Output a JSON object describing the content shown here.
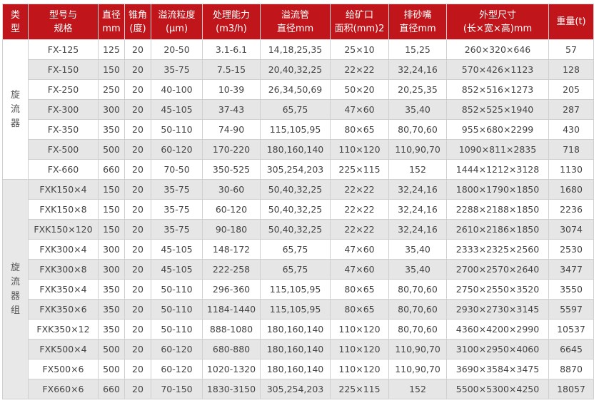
{
  "colors": {
    "header_bg": "#c0161b",
    "header_text": "#ffffff",
    "row_alt": "#e6e6e6",
    "text": "#444444"
  },
  "headers": [
    [
      "类",
      "型"
    ],
    [
      "型号与",
      "规格"
    ],
    [
      "直径",
      "mm"
    ],
    [
      "锥角",
      "(度)"
    ],
    [
      "溢流粒度",
      "(μm)"
    ],
    [
      "处理能力",
      "(m3/h)"
    ],
    [
      "溢流管",
      "直径mm"
    ],
    [
      "给矿口",
      "面积(mm)2"
    ],
    [
      "排砂嘴",
      "直径mm"
    ],
    [
      "外型尺寸",
      "(长×宽×高)mm"
    ],
    [
      "重量(t)"
    ]
  ],
  "groups": [
    {
      "type_label": [
        "旋",
        "流",
        "器"
      ],
      "rows": [
        [
          "FX-125",
          "125",
          "20",
          "20-50",
          "3.1-6.1",
          "14,18,25,35",
          "25×10",
          "15,25",
          "260×320×646",
          "57"
        ],
        [
          "FX-150",
          "150",
          "20",
          "35-75",
          "7.5-15",
          "20,40,32,25",
          "22×22",
          "32,24,16",
          "570×426×1123",
          "128"
        ],
        [
          "FX-250",
          "250",
          "20",
          "40-100",
          "10-39",
          "26,34,50,69",
          "50×20",
          "20,25,35",
          "852×516×1273",
          "205"
        ],
        [
          "FX-300",
          "300",
          "20",
          "45-105",
          "37-43",
          "65,75",
          "47×60",
          "35,40",
          "852×525×1940",
          "287"
        ],
        [
          "FX-350",
          "350",
          "20",
          "50-110",
          "74-90",
          "115,105,95",
          "80×65",
          "80,70,60",
          "955×680×2299",
          "430"
        ],
        [
          "FX-500",
          "500",
          "20",
          "60-120",
          "170-220",
          "180,160,140",
          "110×120",
          "110,90,70",
          "1090×811×2835",
          "718"
        ],
        [
          "FX-660",
          "660",
          "20",
          "70-50",
          "350-525",
          "305,254,203",
          "225×115",
          "152",
          "1444×1212×3128",
          "1130"
        ]
      ]
    },
    {
      "type_label": [
        "旋",
        "流",
        "器",
        "组"
      ],
      "rows": [
        [
          "FXK150×4",
          "150",
          "20",
          "35-75",
          "30-60",
          "50,40,32,25",
          "22×22",
          "32,24,16",
          "1800×1790×1850",
          "1680"
        ],
        [
          "FXK150×8",
          "150",
          "20",
          "35-75",
          "60-120",
          "50,40,32,25",
          "22×22",
          "32,24,16",
          "2288×2188×1850",
          "2236"
        ],
        [
          "FXK150×120",
          "150",
          "20",
          "35-75",
          "90-180",
          "50,40,32,25",
          "22×22",
          "32,24,16",
          "2610×2186×1850",
          "3074"
        ],
        [
          "FXK300×4",
          "300",
          "20",
          "45-105",
          "148-172",
          "65,75",
          "47×60",
          "35,40",
          "2333×2325×2560",
          "2530"
        ],
        [
          "FXK300×8",
          "300",
          "20",
          "45-105",
          "222-258",
          "65,75",
          "47×60",
          "35,40",
          "2700×2570×2640",
          "3477"
        ],
        [
          "FXK350×4",
          "350",
          "20",
          "50-110",
          "296-360",
          "115,105,95",
          "80×65",
          "80,70,60",
          "2750×2550×3520",
          "3550"
        ],
        [
          "FXK350×6",
          "350",
          "20",
          "50-110",
          "1184-1440",
          "115,105,95",
          "80×65",
          "80,70,60",
          "2930×2730×3145",
          "5597"
        ],
        [
          "FXK350×12",
          "350",
          "20",
          "50-110",
          "888-1080",
          "180,160,140",
          "110×120",
          "80,70,60",
          "4360×4200×2990",
          "10537"
        ],
        [
          "FXK500×4",
          "500",
          "20",
          "60-120",
          "680-880",
          "180,160,140",
          "110×120",
          "110,90,70",
          "3100×2950×4060",
          "6645"
        ],
        [
          "FX500×6",
          "500",
          "20",
          "60-120",
          "1020-1320",
          "180,160,140",
          "110×120",
          "110,90,70",
          "3690×3584×3475",
          "8870"
        ],
        [
          "FX660×6",
          "660",
          "20",
          "70-150",
          "1830-3150",
          "305,254,203",
          "225×115",
          "152",
          "5500×5300×4250",
          "18057"
        ]
      ]
    }
  ]
}
